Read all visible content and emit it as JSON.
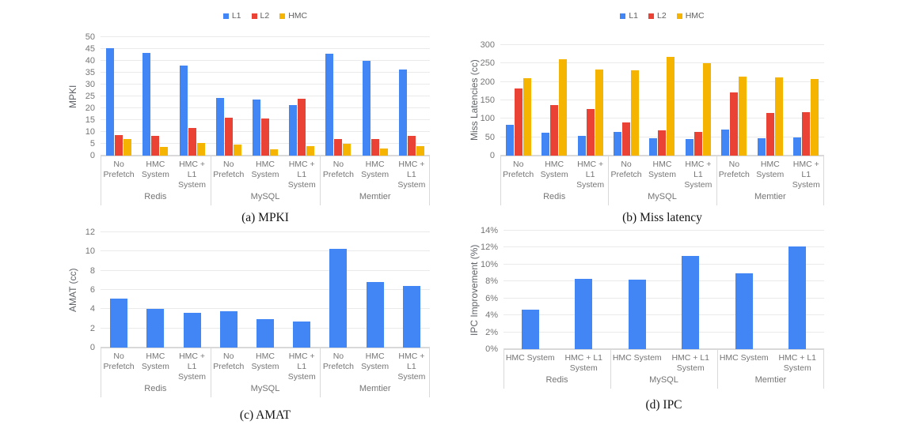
{
  "colors": {
    "l1_blue": "#4285F4",
    "l2_red": "#EA4335",
    "hmc_yellow": "#F4B400"
  },
  "chart_data": [
    {
      "type": "bar",
      "title": "(a) MPKI",
      "ylabel": "MPKI",
      "xlabel": "",
      "ylim": [
        0,
        50
      ],
      "ytick_step": 5,
      "ytick_suffix": "",
      "grid": true,
      "legend_position": "top",
      "legend": [
        "L1",
        "L2",
        "HMC"
      ],
      "groups": [
        "Redis",
        "MySQL",
        "Memtier"
      ],
      "categories": [
        "No\nPrefetch",
        "HMC\nSystem",
        "HMC + L1\nSystem",
        "No\nPrefetch",
        "HMC\nSystem",
        "HMC + L1\nSystem",
        "No\nPrefetch",
        "HMC\nSystem",
        "HMC + L1\nSystem"
      ],
      "series": [
        {
          "name": "L1",
          "color": "#4285F4",
          "values": [
            45.2,
            43.5,
            38.0,
            24.3,
            23.6,
            21.4,
            43.0,
            40.0,
            36.5
          ]
        },
        {
          "name": "L2",
          "color": "#EA4335",
          "values": [
            8.7,
            8.5,
            11.8,
            16.1,
            15.8,
            23.9,
            7.0,
            6.9,
            8.5
          ]
        },
        {
          "name": "HMC",
          "color": "#F4B400",
          "values": [
            7.0,
            3.8,
            5.4,
            4.8,
            2.7,
            3.9,
            5.1,
            3.1,
            4.1
          ]
        }
      ]
    },
    {
      "type": "bar",
      "title": "(b) Miss latency",
      "ylabel": "Miss Latencies (cc)",
      "xlabel": "",
      "ylim": [
        0,
        300
      ],
      "ytick_step": 50,
      "ytick_suffix": "",
      "grid": true,
      "legend_position": "top",
      "legend": [
        "L1",
        "L2",
        "HMC"
      ],
      "groups": [
        "Redis",
        "MySQL",
        "Memtier"
      ],
      "categories": [
        "No\nPrefetch",
        "HMC\nSystem",
        "HMC + L1\nSystem",
        "No\nPrefetch",
        "HMC\nSystem",
        "HMC + L1\nSystem",
        "No\nPrefetch",
        "HMC\nSystem",
        "HMC + L1\nSystem"
      ],
      "series": [
        {
          "name": "L1",
          "color": "#4285F4",
          "values": [
            84,
            63,
            54,
            64,
            48,
            44,
            71,
            47,
            49
          ]
        },
        {
          "name": "L2",
          "color": "#EA4335",
          "values": [
            182,
            137,
            127,
            90,
            69,
            64,
            172,
            116,
            118
          ]
        },
        {
          "name": "HMC",
          "color": "#F4B400",
          "values": [
            210,
            261,
            233,
            232,
            268,
            250,
            215,
            213,
            208
          ]
        }
      ]
    },
    {
      "type": "bar",
      "title": "(c) AMAT",
      "ylabel": "AMAT (cc)",
      "xlabel": "",
      "ylim": [
        0,
        12
      ],
      "ytick_step": 2,
      "ytick_suffix": "",
      "grid": true,
      "groups": [
        "Redis",
        "MySQL",
        "Memtier"
      ],
      "categories": [
        "No\nPrefetch",
        "HMC\nSystem",
        "HMC + L1\nSystem",
        "No\nPrefetch",
        "HMC\nSystem",
        "HMC + L1\nSystem",
        "No\nPrefetch",
        "HMC\nSystem",
        "HMC + L1\nSystem"
      ],
      "series": [
        {
          "name": "AMAT",
          "color": "#4285F4",
          "values": [
            5.1,
            4.0,
            3.6,
            3.75,
            3.0,
            2.7,
            10.25,
            6.8,
            6.4
          ]
        }
      ]
    },
    {
      "type": "bar",
      "title": "(d) IPC",
      "ylabel": "IPC Improvement (%)",
      "xlabel": "",
      "ylim": [
        0,
        14
      ],
      "ytick_step": 2,
      "ytick_suffix": "%",
      "grid": true,
      "groups": [
        "Redis",
        "MySQL",
        "Memtier"
      ],
      "categories": [
        "HMC System",
        "HMC + L1\nSystem",
        "HMC System",
        "HMC + L1\nSystem",
        "HMC System",
        "HMC + L1\nSystem"
      ],
      "series": [
        {
          "name": "IPC Improvement",
          "color": "#4285F4",
          "values": [
            4.7,
            8.3,
            8.2,
            11.0,
            9.0,
            12.1
          ]
        }
      ]
    }
  ]
}
